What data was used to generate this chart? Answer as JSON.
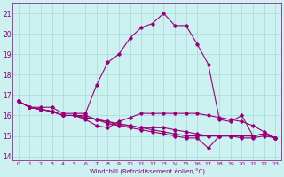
{
  "xlabel": "Windchill (Refroidissement éolien,°C)",
  "bg_color": "#cdf0f0",
  "line_color": "#990077",
  "grid_color": "#aadddd",
  "tick_color": "#880077",
  "xlim": [
    -0.5,
    23.5
  ],
  "ylim": [
    13.8,
    21.5
  ],
  "yticks": [
    14,
    15,
    16,
    17,
    18,
    19,
    20,
    21
  ],
  "xticks": [
    0,
    1,
    2,
    3,
    4,
    5,
    6,
    7,
    8,
    9,
    10,
    11,
    12,
    13,
    14,
    15,
    16,
    17,
    18,
    19,
    20,
    21,
    22,
    23
  ],
  "series": [
    [
      16.7,
      16.4,
      16.4,
      16.4,
      16.1,
      16.1,
      16.1,
      17.5,
      18.6,
      19.0,
      19.8,
      20.3,
      20.5,
      21.0,
      20.4,
      20.4,
      19.5,
      18.5,
      15.8,
      15.7,
      16.0,
      15.0,
      15.1,
      14.9
    ],
    [
      16.7,
      16.4,
      16.3,
      16.2,
      16.0,
      16.0,
      15.8,
      15.5,
      15.4,
      15.7,
      15.9,
      16.1,
      16.1,
      16.1,
      16.1,
      16.1,
      16.1,
      16.0,
      15.9,
      15.8,
      15.7,
      15.5,
      15.2,
      14.9
    ],
    [
      16.7,
      16.4,
      16.3,
      16.2,
      16.0,
      16.0,
      16.0,
      15.8,
      15.6,
      15.5,
      15.5,
      15.4,
      15.4,
      15.4,
      15.3,
      15.2,
      15.1,
      15.0,
      15.0,
      15.0,
      15.0,
      15.0,
      15.1,
      14.9
    ],
    [
      16.7,
      16.4,
      16.3,
      16.2,
      16.0,
      16.0,
      15.9,
      15.8,
      15.7,
      15.6,
      15.5,
      15.4,
      15.3,
      15.2,
      15.1,
      15.0,
      15.0,
      15.0,
      15.0,
      15.0,
      15.0,
      15.0,
      15.1,
      14.9
    ],
    [
      16.7,
      16.4,
      16.3,
      16.2,
      16.0,
      16.0,
      15.9,
      15.8,
      15.7,
      15.5,
      15.4,
      15.3,
      15.2,
      15.1,
      15.0,
      14.9,
      14.9,
      14.4,
      15.0,
      15.0,
      14.9,
      14.9,
      15.0,
      14.9
    ]
  ]
}
